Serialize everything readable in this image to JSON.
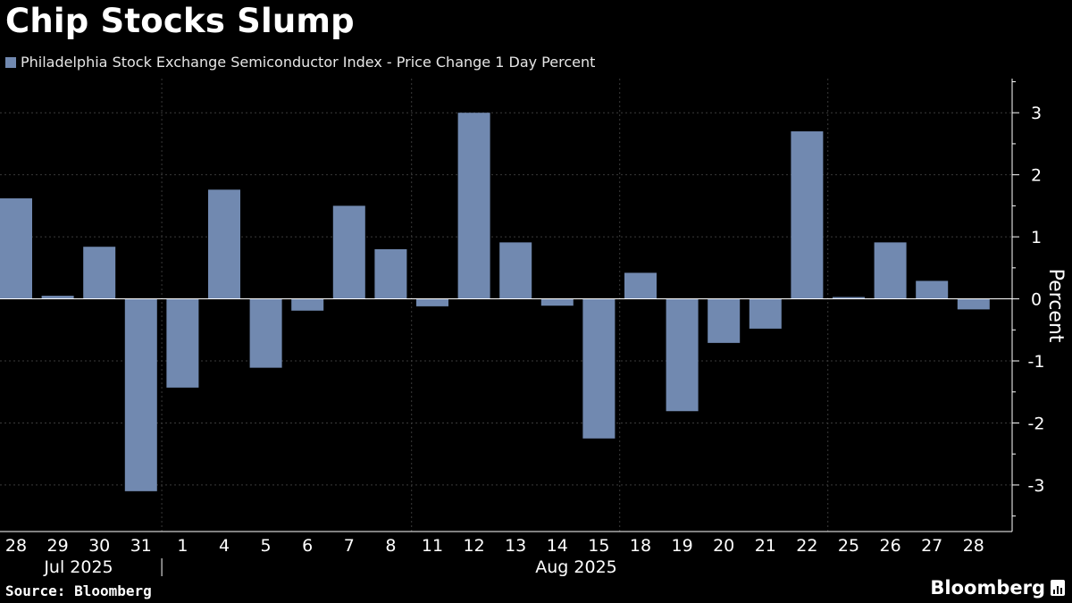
{
  "header": {
    "title": "Chip Stocks Slump",
    "legend_label": "Philadelphia Stock Exchange Semiconductor Index - Price Change 1 Day Percent"
  },
  "footer": {
    "source": "Source: Bloomberg",
    "brand": "Bloomberg"
  },
  "colors": {
    "bar": "#7189b0",
    "grid": "#3a3a3a",
    "axis": "#ffffff",
    "background": "#000000"
  },
  "chart_data": {
    "type": "bar",
    "title": "Chip Stocks Slump",
    "ylabel": "Percent",
    "xlabel": "",
    "ylim": [
      -3.75,
      3.55
    ],
    "yticks": [
      3,
      2,
      1,
      0,
      -1,
      -2,
      -3
    ],
    "legend_position": "top-left",
    "grid": true,
    "categories": [
      "28",
      "29",
      "30",
      "31",
      "1",
      "4",
      "5",
      "6",
      "7",
      "8",
      "11",
      "12",
      "13",
      "14",
      "15",
      "18",
      "19",
      "20",
      "21",
      "22",
      "25",
      "26",
      "27",
      "28"
    ],
    "month_labels": [
      {
        "label": "Jul 2025",
        "start_index": 0,
        "end_index": 3
      },
      {
        "label": "Aug 2025",
        "start_index": 4,
        "end_index": 23
      }
    ],
    "series": [
      {
        "name": "Philadelphia Stock Exchange Semiconductor Index - Price Change 1 Day Percent",
        "values": [
          1.62,
          0.05,
          0.84,
          -3.1,
          -1.43,
          1.76,
          -1.11,
          -0.19,
          1.5,
          0.8,
          -0.12,
          3.0,
          0.91,
          -0.11,
          -2.25,
          0.42,
          -1.81,
          -0.71,
          -0.48,
          2.7,
          0.03,
          0.91,
          0.29,
          -0.17
        ]
      }
    ]
  }
}
